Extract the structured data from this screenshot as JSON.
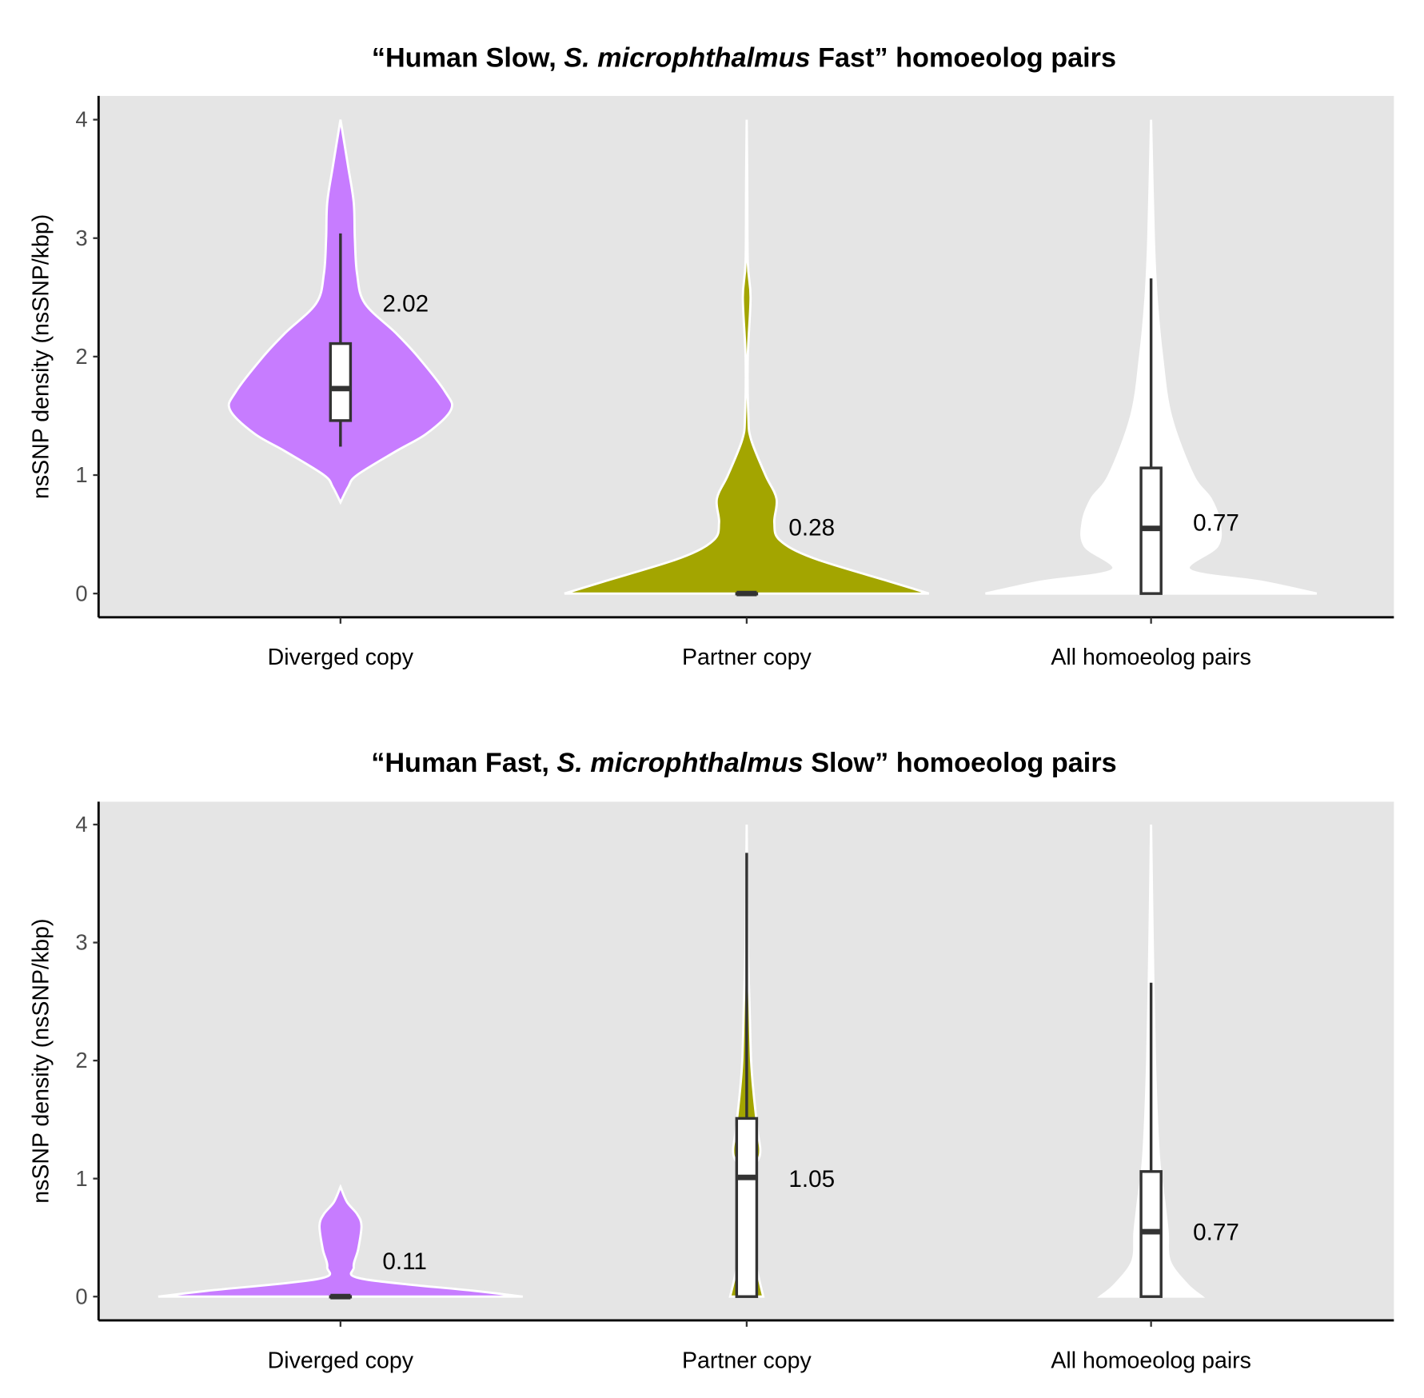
{
  "chart_data": [
    {
      "type": "violin",
      "title_parts": [
        "“Human Slow, ",
        "S. microphthalmus",
        " Fast” homoeolog pairs"
      ],
      "ylabel": "nsSNP density (nsSNP/kbp)",
      "ylim": [
        0,
        4
      ],
      "yticks": [
        "0",
        "1",
        "2",
        "3",
        "4"
      ],
      "categories": [
        "Diverged copy",
        "Partner copy",
        "All homoeolog pairs"
      ],
      "colors": [
        "#C77CFF",
        "#A3A500",
        "#FFFFFF"
      ],
      "background": "#E5E5E5",
      "violins": [
        {
          "density": [
            [
              0.77,
              0
            ],
            [
              0.9,
              0.07
            ],
            [
              1.0,
              0.15
            ],
            [
              1.2,
              0.5
            ],
            [
              1.35,
              0.78
            ],
            [
              1.55,
              1.0
            ],
            [
              1.7,
              0.95
            ],
            [
              2.0,
              0.7
            ],
            [
              2.2,
              0.5
            ],
            [
              2.45,
              0.22
            ],
            [
              2.7,
              0.15
            ],
            [
              3.0,
              0.13
            ],
            [
              3.3,
              0.12
            ],
            [
              3.6,
              0.07
            ],
            [
              4.0,
              0
            ]
          ],
          "box": {
            "lower": 1.24,
            "q1": 1.46,
            "median": 1.73,
            "q3": 2.11,
            "upper": 3.04
          },
          "mean_label": "2.02",
          "label_y": 2.45
        },
        {
          "density": [
            [
              0,
              1.65
            ],
            [
              0.1,
              1.3
            ],
            [
              0.3,
              0.6
            ],
            [
              0.45,
              0.3
            ],
            [
              0.6,
              0.25
            ],
            [
              0.8,
              0.27
            ],
            [
              1.0,
              0.17
            ],
            [
              1.3,
              0.04
            ],
            [
              1.5,
              0.015
            ],
            [
              2.0,
              0.01
            ],
            [
              2.5,
              0.035
            ],
            [
              2.8,
              0.01
            ],
            [
              3.5,
              0.005
            ],
            [
              4.0,
              0
            ]
          ],
          "box": {
            "lower": 0,
            "q1": 0,
            "median": 0,
            "q3": 0,
            "upper": 0
          },
          "mean_label": "0.28",
          "label_y": 0.56
        },
        {
          "density": [
            [
              0,
              1.5
            ],
            [
              0.1,
              1.0
            ],
            [
              0.2,
              0.35
            ],
            [
              0.4,
              0.6
            ],
            [
              0.6,
              0.62
            ],
            [
              0.8,
              0.54
            ],
            [
              1.0,
              0.38
            ],
            [
              1.5,
              0.18
            ],
            [
              2.0,
              0.1
            ],
            [
              2.5,
              0.05
            ],
            [
              3.0,
              0.025
            ],
            [
              4.0,
              0
            ]
          ],
          "box": {
            "lower": 0,
            "q1": 0,
            "median": 0.55,
            "q3": 1.06,
            "upper": 2.66
          },
          "mean_label": "0.77",
          "label_y": 0.6
        }
      ]
    },
    {
      "type": "violin",
      "title_parts": [
        "“Human Fast, ",
        "S. microphthalmus",
        " Slow” homoeolog pairs"
      ],
      "ylabel": "nsSNP density (nsSNP/kbp)",
      "ylim": [
        0,
        4
      ],
      "yticks": [
        "0",
        "1",
        "2",
        "3",
        "4"
      ],
      "categories": [
        "Diverged copy",
        "Partner copy",
        "All homoeolog pairs"
      ],
      "colors": [
        "#C77CFF",
        "#A3A500",
        "#FFFFFF"
      ],
      "background": "#E5E5E5",
      "violins": [
        {
          "density": [
            [
              0,
              1.65
            ],
            [
              0.05,
              1.2
            ],
            [
              0.15,
              0.2
            ],
            [
              0.25,
              0.12
            ],
            [
              0.4,
              0.16
            ],
            [
              0.6,
              0.19
            ],
            [
              0.7,
              0.15
            ],
            [
              0.8,
              0.06
            ],
            [
              0.93,
              0
            ]
          ],
          "box": {
            "lower": 0,
            "q1": 0,
            "median": 0,
            "q3": 0,
            "upper": 0
          },
          "mean_label": "0.11",
          "label_y": 0.3
        },
        {
          "density": [
            [
              0,
              0.15
            ],
            [
              0.2,
              0.1
            ],
            [
              0.5,
              0.04
            ],
            [
              1.0,
              0.03
            ],
            [
              1.2,
              0.12
            ],
            [
              1.4,
              0.1
            ],
            [
              1.7,
              0.065
            ],
            [
              2.0,
              0.04
            ],
            [
              2.5,
              0.025
            ],
            [
              3.0,
              0.01
            ],
            [
              4.0,
              0
            ]
          ],
          "box": {
            "lower": 0,
            "q1": 0,
            "median": 1.01,
            "q3": 1.51,
            "upper": 3.76
          },
          "mean_label": "1.05",
          "label_y": 1.0
        },
        {
          "density": [
            [
              0,
              0.46
            ],
            [
              0.1,
              0.33
            ],
            [
              0.3,
              0.17
            ],
            [
              0.55,
              0.15
            ],
            [
              0.8,
              0.12
            ],
            [
              1.2,
              0.07
            ],
            [
              2.0,
              0.035
            ],
            [
              3.0,
              0.015
            ],
            [
              4.0,
              0
            ]
          ],
          "box": {
            "lower": 0,
            "q1": 0,
            "median": 0.55,
            "q3": 1.06,
            "upper": 2.66
          },
          "mean_label": "0.77",
          "label_y": 0.55
        }
      ]
    }
  ]
}
